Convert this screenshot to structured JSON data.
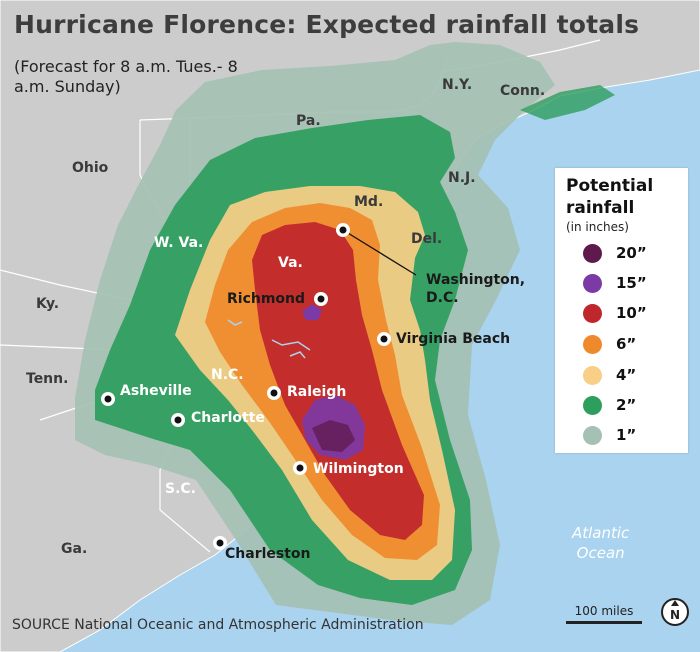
{
  "title": "Hurricane Florence: Expected rainfall totals",
  "subtitle": "(Forecast for 8 a.m. Tues.- 8 a.m. Sunday)",
  "states": {
    "ny": "N.Y.",
    "conn": "Conn.",
    "pa": "Pa.",
    "ohio": "Ohio",
    "nj": "N.J.",
    "md": "Md.",
    "del": "Del.",
    "wva": "W. Va.",
    "va": "Va.",
    "ky": "Ky.",
    "tenn": "Tenn.",
    "nc": "N.C.",
    "sc": "S.C.",
    "ga": "Ga."
  },
  "cities": {
    "richmond": "Richmond",
    "virginia_beach": "Virginia Beach",
    "washington_line1": "Washington,",
    "washington_line2": "D.C.",
    "raleigh": "Raleigh",
    "asheville": "Asheville",
    "charlotte": "Charlotte",
    "wilmington": "Wilmington",
    "charleston": "Charleston"
  },
  "ocean": {
    "line1": "Atlantic",
    "line2": "Ocean"
  },
  "legend": {
    "title_line1": "Potential",
    "title_line2": "rainfall",
    "unit": "(in inches)",
    "items": [
      {
        "label": "20”",
        "color": "#5e1a4d"
      },
      {
        "label": "15”",
        "color": "#7b3aa6"
      },
      {
        "label": "10”",
        "color": "#c0272d"
      },
      {
        "label": "6”",
        "color": "#ef8a2c"
      },
      {
        "label": "4”",
        "color": "#f7cf86"
      },
      {
        "label": "2”",
        "color": "#2e9e5f"
      },
      {
        "label": "1”",
        "color": "#a5c1b4"
      }
    ]
  },
  "source": "SOURCE National Oceanic and Atmospheric Administration",
  "scale": "100 miles",
  "north": "N",
  "colors": {
    "water": "#a9d3ee",
    "land": "#cccccc"
  }
}
